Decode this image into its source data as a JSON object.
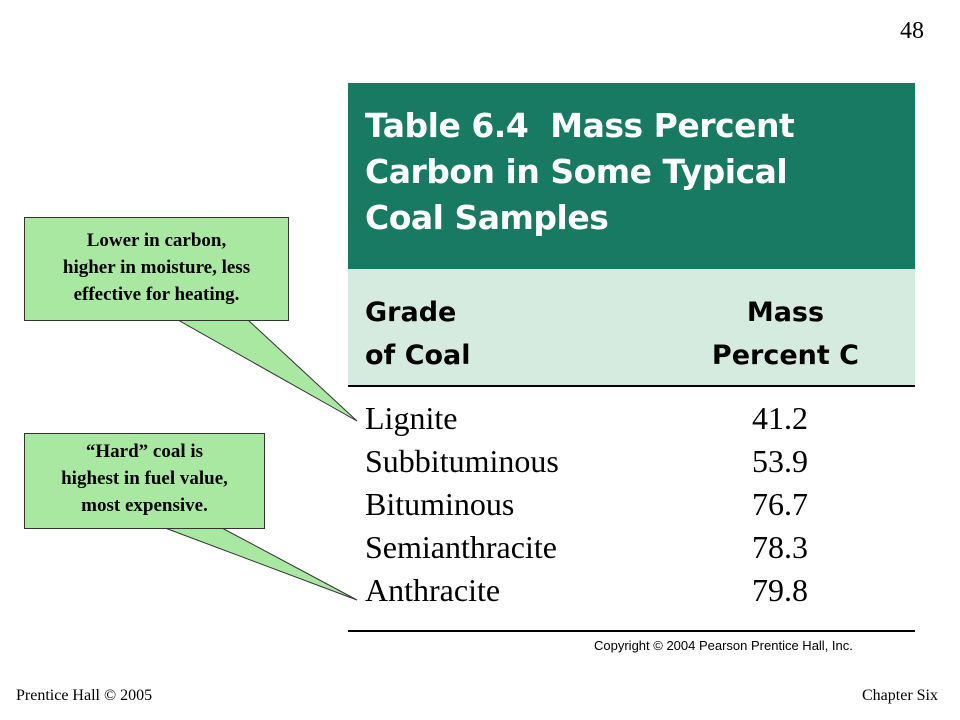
{
  "slide": {
    "number": "48"
  },
  "table": {
    "number": "Table 6.4",
    "title_lines": [
      "Mass Percent",
      "Carbon in Some Typical",
      "Coal Samples"
    ],
    "headers": {
      "grade": [
        "Grade",
        "of Coal"
      ],
      "mass": [
        "Mass",
        "Percent C"
      ]
    },
    "rows": [
      {
        "grade": "Lignite",
        "value": "41.2"
      },
      {
        "grade": "Subbituminous",
        "value": "53.9"
      },
      {
        "grade": "Bituminous",
        "value": "76.7"
      },
      {
        "grade": "Semianthracite",
        "value": "78.3"
      },
      {
        "grade": "Anthracite",
        "value": "79.8"
      }
    ],
    "copyright": "Copyright © 2004 Pearson Prentice Hall, Inc."
  },
  "callouts": {
    "lignite": [
      "Lower in carbon,",
      "higher in moisture, less",
      "effective for heating."
    ],
    "anthracite": [
      "“Hard” coal is",
      "highest in fuel value,",
      "most expensive."
    ]
  },
  "footer": {
    "left": "Prentice Hall © 2005",
    "right": "Chapter Six"
  },
  "colors": {
    "title_band": "#187a63",
    "header_band": "#d5ebe0",
    "callout_fill": "#a8e8a0"
  }
}
